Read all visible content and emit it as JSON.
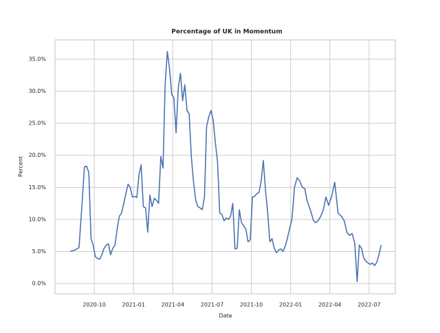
{
  "chart_data": {
    "type": "line",
    "title": "Percentage of UK in Momentum",
    "x_label": "Date",
    "y_label": "Percent",
    "x": [
      "2020-08",
      "2020-08",
      "2020-08",
      "2020-09",
      "2020-09",
      "2020-09",
      "2020-09",
      "2020-09",
      "2020-09",
      "2020-10",
      "2020-10",
      "2020-10",
      "2020-10",
      "2020-10",
      "2020-10",
      "2020-11",
      "2020-11",
      "2020-11",
      "2020-11",
      "2020-11",
      "2020-11",
      "2020-12",
      "2020-12",
      "2020-12",
      "2020-12",
      "2020-12",
      "2020-12",
      "2021-01",
      "2021-01",
      "2021-01",
      "2021-01",
      "2021-01",
      "2021-01",
      "2021-02",
      "2021-02",
      "2021-02",
      "2021-02",
      "2021-02",
      "2021-02",
      "2021-03",
      "2021-03",
      "2021-03",
      "2021-03",
      "2021-03",
      "2021-03",
      "2021-04",
      "2021-04",
      "2021-04",
      "2021-04",
      "2021-04",
      "2021-04",
      "2021-05",
      "2021-05",
      "2021-05",
      "2021-05",
      "2021-05",
      "2021-05",
      "2021-06",
      "2021-06",
      "2021-06",
      "2021-06",
      "2021-06",
      "2021-06",
      "2021-07",
      "2021-07",
      "2021-07",
      "2021-07",
      "2021-07",
      "2021-07",
      "2021-08",
      "2021-08",
      "2021-08",
      "2021-08",
      "2021-08",
      "2021-08",
      "2021-09",
      "2021-09",
      "2021-09",
      "2021-09",
      "2021-09",
      "2021-09",
      "2021-10",
      "2021-10",
      "2021-10",
      "2021-10",
      "2021-10",
      "2021-10",
      "2021-11",
      "2021-11",
      "2021-11",
      "2021-11",
      "2021-11",
      "2021-11",
      "2021-12",
      "2021-12",
      "2021-12",
      "2021-12",
      "2021-12",
      "2021-12",
      "2022-01",
      "2022-01",
      "2022-01",
      "2022-01",
      "2022-01",
      "2022-02",
      "2022-02",
      "2022-02",
      "2022-02",
      "2022-02",
      "2022-02",
      "2022-03",
      "2022-03",
      "2022-03",
      "2022-03",
      "2022-03",
      "2022-04",
      "2022-04",
      "2022-04",
      "2022-04",
      "2022-05",
      "2022-05",
      "2022-05",
      "2022-05",
      "2022-05",
      "2022-06",
      "2022-06",
      "2022-06",
      "2022-06",
      "2022-06",
      "2022-06",
      "2022-07",
      "2022-07",
      "2022-07",
      "2022-07",
      "2022-07",
      "2022-07"
    ],
    "series": [
      {
        "name": "Percent",
        "color": "#4c72b0",
        "values": [
          5.0,
          5.2,
          5.6,
          13.0,
          18.2,
          18.3,
          17.3,
          7.0,
          6.0,
          4.2,
          3.9,
          3.8,
          4.5,
          5.5,
          6.0,
          6.2,
          4.5,
          5.5,
          6.0,
          8.5,
          10.5,
          11.0,
          12.5,
          14.0,
          15.5,
          15.0,
          13.5,
          13.6,
          13.4,
          17.0,
          18.5,
          12.0,
          11.8,
          8.0,
          13.8,
          12.0,
          13.3,
          13.0,
          12.5,
          19.8,
          18.0,
          31.0,
          36.2,
          33.5,
          29.5,
          29.0,
          23.5,
          30.5,
          32.8,
          28.5,
          31.0,
          27.0,
          26.5,
          19.8,
          15.8,
          13.0,
          12.0,
          11.8,
          11.5,
          13.5,
          24.5,
          26.0,
          27.0,
          25.5,
          22.0,
          19.0,
          11.0,
          10.8,
          9.8,
          10.2,
          10.0,
          10.5,
          12.5,
          5.4,
          5.5,
          11.5,
          9.5,
          9.0,
          8.5,
          6.5,
          6.8,
          13.5,
          13.6,
          14.0,
          14.2,
          16.0,
          19.2,
          14.5,
          11.0,
          6.5,
          7.0,
          5.5,
          4.8,
          5.2,
          5.4,
          5.0,
          5.8,
          7.0,
          8.5,
          10.0,
          15.0,
          16.5,
          16.0,
          15.0,
          14.8,
          13.0,
          12.0,
          11.0,
          9.8,
          9.5,
          9.8,
          10.5,
          11.5,
          13.5,
          12.2,
          13.5,
          15.8,
          11.0,
          10.5,
          9.8,
          8.0,
          7.5,
          7.8,
          6.3,
          0.3,
          6.0,
          5.5,
          4.0,
          3.5,
          3.2,
          3.0,
          3.2,
          2.8,
          3.3,
          4.5,
          6.0
        ]
      }
    ],
    "xlim": [
      "2020-07",
      "2022-09"
    ],
    "xticks": [
      "2020-10",
      "2021-01",
      "2021-04",
      "2021-07",
      "2021-10",
      "2022-01",
      "2022-04",
      "2022-07"
    ],
    "ylim": [
      -1.6,
      38.0
    ],
    "yticks": [
      {
        "value": 0,
        "label": "0.0%"
      },
      {
        "value": 5,
        "label": "5.0%"
      },
      {
        "value": 10,
        "label": "10.0%"
      },
      {
        "value": 15,
        "label": "15.0%"
      },
      {
        "value": 20,
        "label": "20.0%"
      },
      {
        "value": 25,
        "label": "25.0%"
      },
      {
        "value": 30,
        "label": "30.0%"
      },
      {
        "value": 35,
        "label": "35.0%"
      }
    ],
    "grid": true
  }
}
